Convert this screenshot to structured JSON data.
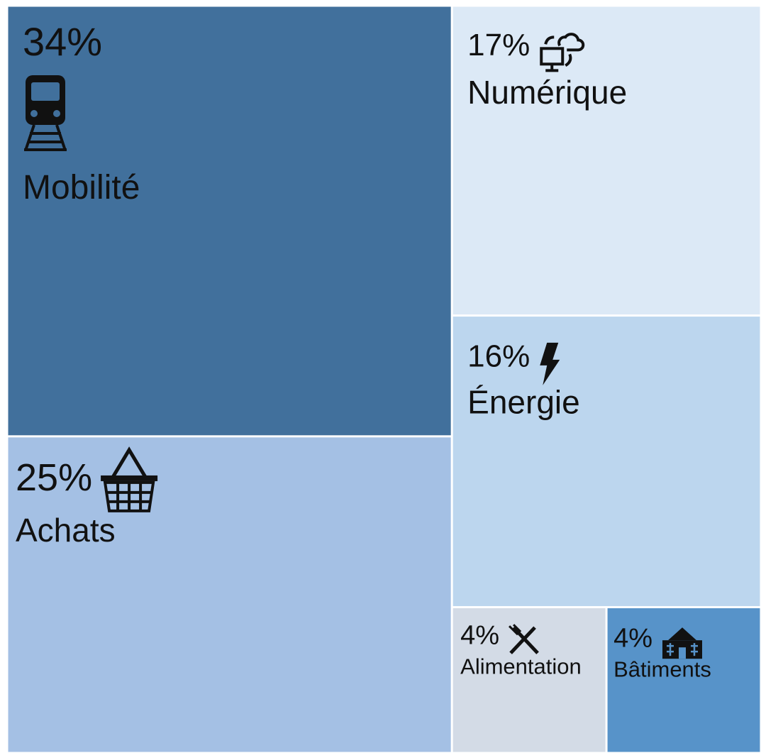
{
  "chart_data": {
    "type": "treemap",
    "categories": [
      "Mobilité",
      "Achats",
      "Numérique",
      "Énergie",
      "Alimentation",
      "Bâtiments"
    ],
    "values": [
      34,
      25,
      17,
      16,
      4,
      4
    ],
    "value_labels": [
      "34%",
      "25%",
      "17%",
      "16%",
      "4%",
      "4%"
    ],
    "colors": [
      "#41709c",
      "#a4c0e4",
      "#dce9f6",
      "#bcd6ee",
      "#d3dbe6",
      "#5793c9"
    ]
  }
}
